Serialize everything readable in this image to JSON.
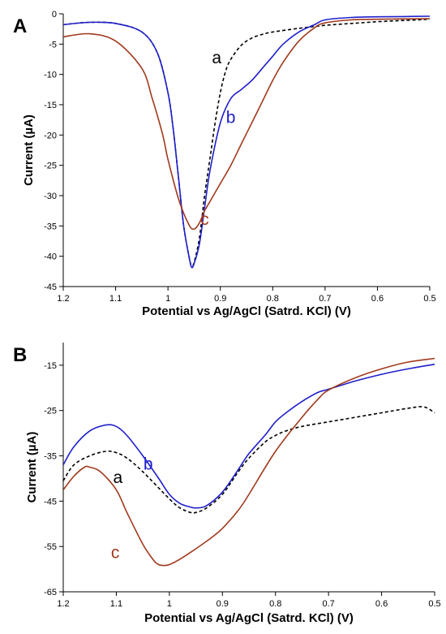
{
  "colors": {
    "a": "#000000",
    "b": "#1f1fcc",
    "c": "#a0391c"
  },
  "chart_data": [
    {
      "panel": "A",
      "type": "line",
      "xlabel": "Potential vs Ag/AgCl (Satrd. KCl) (V)",
      "ylabel": "Current (µA)",
      "xlim": [
        1.2,
        0.5
      ],
      "ylim": [
        -45,
        0
      ],
      "xticks": [
        1.2,
        1.1,
        1,
        0.9,
        0.8,
        0.7,
        0.6,
        0.5
      ],
      "yticks": [
        0,
        -5,
        -10,
        -15,
        -20,
        -25,
        -30,
        -35,
        -40,
        -45
      ],
      "grid": false,
      "series": [
        {
          "name": "a",
          "style": "dashed",
          "label_at": [
            0.907,
            -8.2
          ],
          "x": [
            1.2,
            1.15,
            1.1,
            1.05,
            1.02,
            1.0,
            0.99,
            0.98,
            0.97,
            0.96,
            0.955,
            0.95,
            0.94,
            0.93,
            0.92,
            0.91,
            0.9,
            0.89,
            0.88,
            0.86,
            0.84,
            0.82,
            0.8,
            0.75,
            0.7,
            0.65,
            0.6,
            0.55,
            0.5
          ],
          "y": [
            -1.8,
            -1.4,
            -1.6,
            -3.0,
            -6.5,
            -13.0,
            -19.0,
            -27.0,
            -35.0,
            -40.0,
            -41.5,
            -41.0,
            -37.0,
            -30.0,
            -24.0,
            -18.0,
            -13.0,
            -9.5,
            -7.5,
            -5.2,
            -4.0,
            -3.4,
            -3.0,
            -2.4,
            -1.9,
            -1.6,
            -1.3,
            -1.1,
            -0.9
          ]
        },
        {
          "name": "b",
          "style": "solid",
          "label_at": [
            0.88,
            -18.0
          ],
          "x": [
            1.2,
            1.15,
            1.1,
            1.05,
            1.02,
            1.0,
            0.99,
            0.98,
            0.97,
            0.96,
            0.955,
            0.95,
            0.94,
            0.93,
            0.92,
            0.9,
            0.88,
            0.86,
            0.84,
            0.82,
            0.8,
            0.78,
            0.75,
            0.72,
            0.7,
            0.65,
            0.6,
            0.55,
            0.5
          ],
          "y": [
            -1.8,
            -1.4,
            -1.6,
            -3.0,
            -6.5,
            -13.0,
            -19.0,
            -27.0,
            -35.0,
            -40.0,
            -41.8,
            -41.2,
            -38.0,
            -32.0,
            -26.0,
            -18.0,
            -14.0,
            -12.5,
            -11.0,
            -9.0,
            -7.0,
            -5.0,
            -3.0,
            -1.8,
            -1.0,
            -0.6,
            -0.5,
            -0.45,
            -0.4
          ]
        },
        {
          "name": "c",
          "style": "solid",
          "label_at": [
            0.93,
            -34.8
          ],
          "x": [
            1.2,
            1.15,
            1.1,
            1.05,
            1.03,
            1.01,
            1.0,
            0.98,
            0.96,
            0.95,
            0.94,
            0.93,
            0.92,
            0.9,
            0.88,
            0.86,
            0.84,
            0.82,
            0.8,
            0.78,
            0.75,
            0.72,
            0.7,
            0.65,
            0.6,
            0.55,
            0.5
          ],
          "y": [
            -3.8,
            -3.3,
            -4.5,
            -9.0,
            -14.0,
            -20.0,
            -24.0,
            -30.5,
            -34.8,
            -35.5,
            -34.5,
            -32.5,
            -31.0,
            -28.0,
            -25.0,
            -21.5,
            -18.0,
            -14.5,
            -11.0,
            -8.0,
            -4.5,
            -2.3,
            -1.5,
            -1.0,
            -0.9,
            -0.85,
            -0.8
          ]
        }
      ]
    },
    {
      "panel": "B",
      "type": "line",
      "xlabel": "Potential vs Ag/AgCl (Satrd. KCl) (V)",
      "ylabel": "Current (µA)",
      "xlim": [
        1.2,
        0.5
      ],
      "ylim": [
        -65,
        -10
      ],
      "xticks": [
        1.2,
        1.1,
        1,
        0.9,
        0.8,
        0.7,
        0.6,
        0.5
      ],
      "yticks": [
        -15,
        -25,
        -35,
        -45,
        -55,
        -65
      ],
      "grid": false,
      "series": [
        {
          "name": "a",
          "style": "dashed",
          "label_at": [
            1.097,
            -41.0
          ],
          "x": [
            1.2,
            1.18,
            1.15,
            1.12,
            1.1,
            1.08,
            1.05,
            1.0,
            0.98,
            0.96,
            0.95,
            0.93,
            0.9,
            0.87,
            0.85,
            0.82,
            0.8,
            0.78,
            0.75,
            0.7,
            0.65,
            0.6,
            0.55,
            0.52,
            0.5
          ],
          "y": [
            -40.5,
            -37.0,
            -35.0,
            -34.0,
            -34.3,
            -35.5,
            -38.5,
            -44.5,
            -46.5,
            -47.5,
            -47.5,
            -46.5,
            -43.5,
            -38.5,
            -35.5,
            -32.0,
            -30.5,
            -29.5,
            -28.5,
            -27.5,
            -26.5,
            -25.5,
            -24.5,
            -24.2,
            -25.5
          ]
        },
        {
          "name": "b",
          "style": "solid",
          "label_at": [
            1.04,
            -38.0
          ],
          "x": [
            1.2,
            1.18,
            1.15,
            1.12,
            1.1,
            1.08,
            1.05,
            1.02,
            1.0,
            0.98,
            0.96,
            0.95,
            0.93,
            0.9,
            0.87,
            0.85,
            0.82,
            0.8,
            0.78,
            0.75,
            0.72,
            0.7,
            0.65,
            0.6,
            0.55,
            0.5
          ],
          "y": [
            -37.0,
            -33.0,
            -29.5,
            -28.2,
            -28.5,
            -30.5,
            -35.0,
            -40.0,
            -43.5,
            -45.5,
            -46.3,
            -46.5,
            -46.0,
            -43.0,
            -38.0,
            -34.5,
            -30.5,
            -27.5,
            -25.5,
            -23.0,
            -21.0,
            -20.3,
            -18.5,
            -17.0,
            -15.8,
            -14.8
          ]
        },
        {
          "name": "c",
          "style": "solid",
          "label_at": [
            1.102,
            -57.6
          ],
          "x": [
            1.2,
            1.18,
            1.16,
            1.15,
            1.13,
            1.1,
            1.08,
            1.05,
            1.03,
            1.02,
            1.01,
            1.0,
            0.98,
            0.95,
            0.92,
            0.9,
            0.87,
            0.85,
            0.8,
            0.75,
            0.72,
            0.7,
            0.65,
            0.6,
            0.55,
            0.5
          ],
          "y": [
            -42.5,
            -39.5,
            -37.5,
            -37.5,
            -38.5,
            -42.5,
            -47.5,
            -54.5,
            -58.0,
            -59.0,
            -59.2,
            -59.0,
            -57.8,
            -55.5,
            -53.0,
            -51.0,
            -47.0,
            -43.5,
            -34.0,
            -26.5,
            -22.5,
            -20.5,
            -17.8,
            -15.8,
            -14.3,
            -13.5
          ]
        }
      ]
    }
  ],
  "panels": [
    {
      "letter": "A"
    },
    {
      "letter": "B"
    }
  ]
}
